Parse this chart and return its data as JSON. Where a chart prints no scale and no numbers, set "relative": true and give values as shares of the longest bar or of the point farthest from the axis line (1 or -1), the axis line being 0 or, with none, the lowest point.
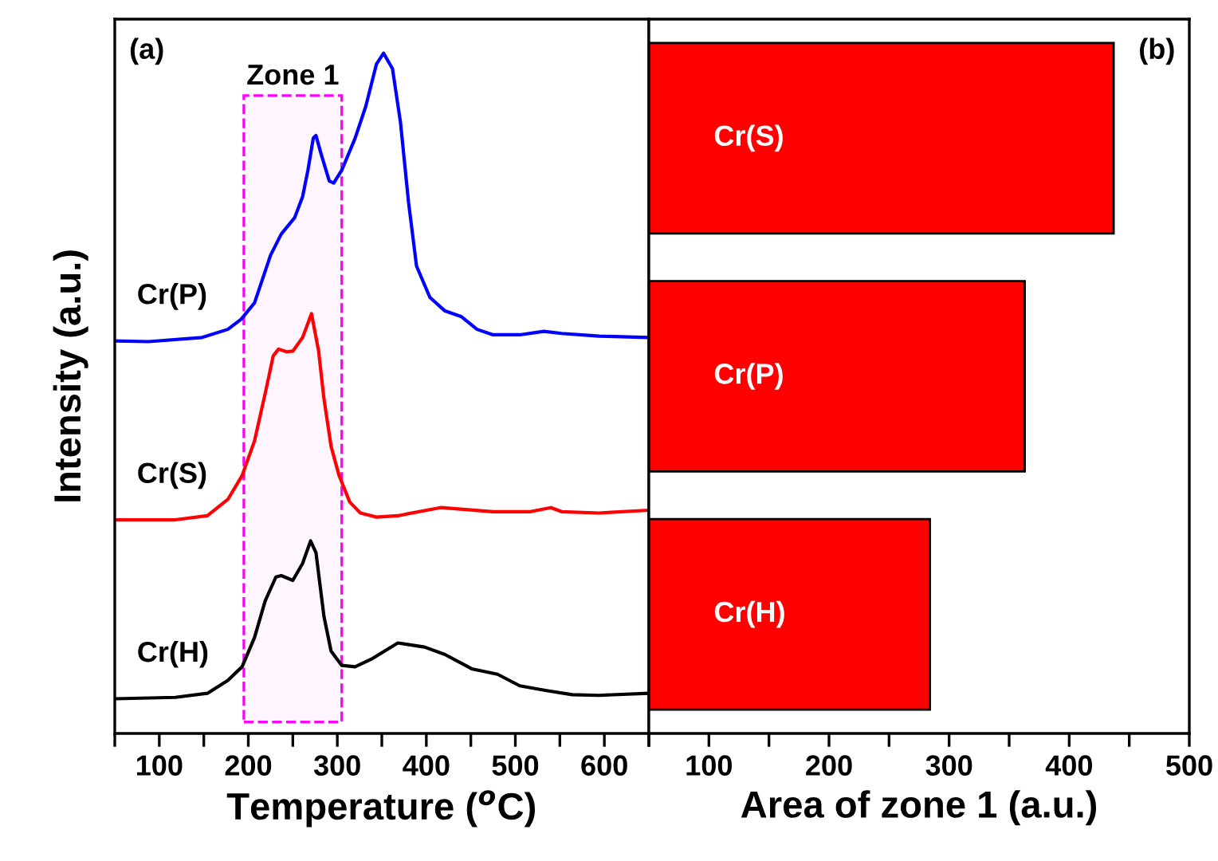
{
  "chart_data": [
    {
      "type": "line",
      "relative": true,
      "xlabel": "Temperature ($^{o}$C)",
      "ylabel": "Intensity (a.u.)",
      "xlim": [
        50,
        650
      ],
      "xticks": [
        {
          "value": 50,
          "label": null
        },
        100,
        {
          "value": 150,
          "label": null
        },
        200,
        {
          "value": 250,
          "label": null
        },
        300,
        {
          "value": 350,
          "label": null
        },
        400,
        {
          "value": 450,
          "label": null
        },
        500,
        {
          "value": 550,
          "label": null
        },
        600,
        {
          "value": 650,
          "label": null
        }
      ],
      "tick_labels": "x",
      "grid": false,
      "annotations": [
        "(a)"
      ],
      "bands": [
        {
          "axis": "x",
          "from": 195,
          "to": 305,
          "label": "Zone 1",
          "color": "#ff00ff"
        }
      ],
      "series": [
        {
          "name": "Cr(P)",
          "color": "#0000ff",
          "x": [
            50,
            88,
            148,
            177,
            192,
            207,
            225,
            237,
            252,
            261,
            267,
            273,
            276,
            282,
            291,
            296,
            305,
            320,
            332,
            344,
            352,
            362,
            371,
            380,
            389,
            404,
            421,
            439,
            457,
            475,
            505,
            532,
            552,
            594,
            648
          ],
          "values": [
            0.577,
            0.576,
            0.582,
            0.594,
            0.609,
            0.633,
            0.703,
            0.734,
            0.758,
            0.789,
            0.828,
            0.875,
            0.879,
            0.851,
            0.812,
            0.809,
            0.828,
            0.875,
            0.922,
            0.984,
            1.0,
            0.977,
            0.898,
            0.781,
            0.687,
            0.641,
            0.621,
            0.613,
            0.594,
            0.586,
            0.586,
            0.591,
            0.588,
            0.584,
            0.582
          ]
        },
        {
          "name": "Cr(S)",
          "color": "#ff0000",
          "x": [
            50,
            118,
            154,
            177,
            193,
            207,
            219,
            228,
            234,
            243,
            250,
            261,
            271,
            279,
            285,
            293,
            302,
            314,
            326,
            344,
            368,
            416,
            475,
            517,
            540,
            552,
            594,
            648
          ],
          "values": [
            0.314,
            0.314,
            0.32,
            0.344,
            0.379,
            0.43,
            0.5,
            0.555,
            0.565,
            0.561,
            0.562,
            0.582,
            0.617,
            0.562,
            0.492,
            0.422,
            0.379,
            0.34,
            0.324,
            0.318,
            0.32,
            0.332,
            0.326,
            0.326,
            0.332,
            0.326,
            0.324,
            0.328
          ]
        },
        {
          "name": "Cr(H)",
          "color": "#000000",
          "x": [
            50,
            118,
            154,
            177,
            193,
            207,
            219,
            231,
            237,
            250,
            261,
            270,
            276,
            285,
            293,
            305,
            320,
            338,
            368,
            398,
            421,
            451,
            480,
            505,
            535,
            564,
            594,
            648
          ],
          "values": [
            0.051,
            0.053,
            0.059,
            0.078,
            0.098,
            0.141,
            0.195,
            0.23,
            0.232,
            0.225,
            0.25,
            0.283,
            0.266,
            0.172,
            0.121,
            0.1,
            0.098,
            0.109,
            0.133,
            0.127,
            0.116,
            0.095,
            0.087,
            0.07,
            0.063,
            0.057,
            0.056,
            0.059
          ]
        }
      ]
    },
    {
      "type": "bar",
      "orientation": "horizontal",
      "xlabel": "Area of zone 1 (a.u.)",
      "xlim": [
        50,
        500
      ],
      "xticks": [
        {
          "value": 50,
          "label": null
        },
        100,
        {
          "value": 150,
          "label": null
        },
        200,
        {
          "value": 250,
          "label": null
        },
        300,
        {
          "value": 350,
          "label": null
        },
        400,
        {
          "value": 450,
          "label": null
        },
        500
      ],
      "tick_labels": "x",
      "grid": false,
      "annotations": [
        "(b)"
      ],
      "categories": [
        "Cr(S)",
        "Cr(P)",
        "Cr(H)"
      ],
      "values": [
        437,
        363,
        284
      ],
      "color": "#ff0000"
    }
  ]
}
